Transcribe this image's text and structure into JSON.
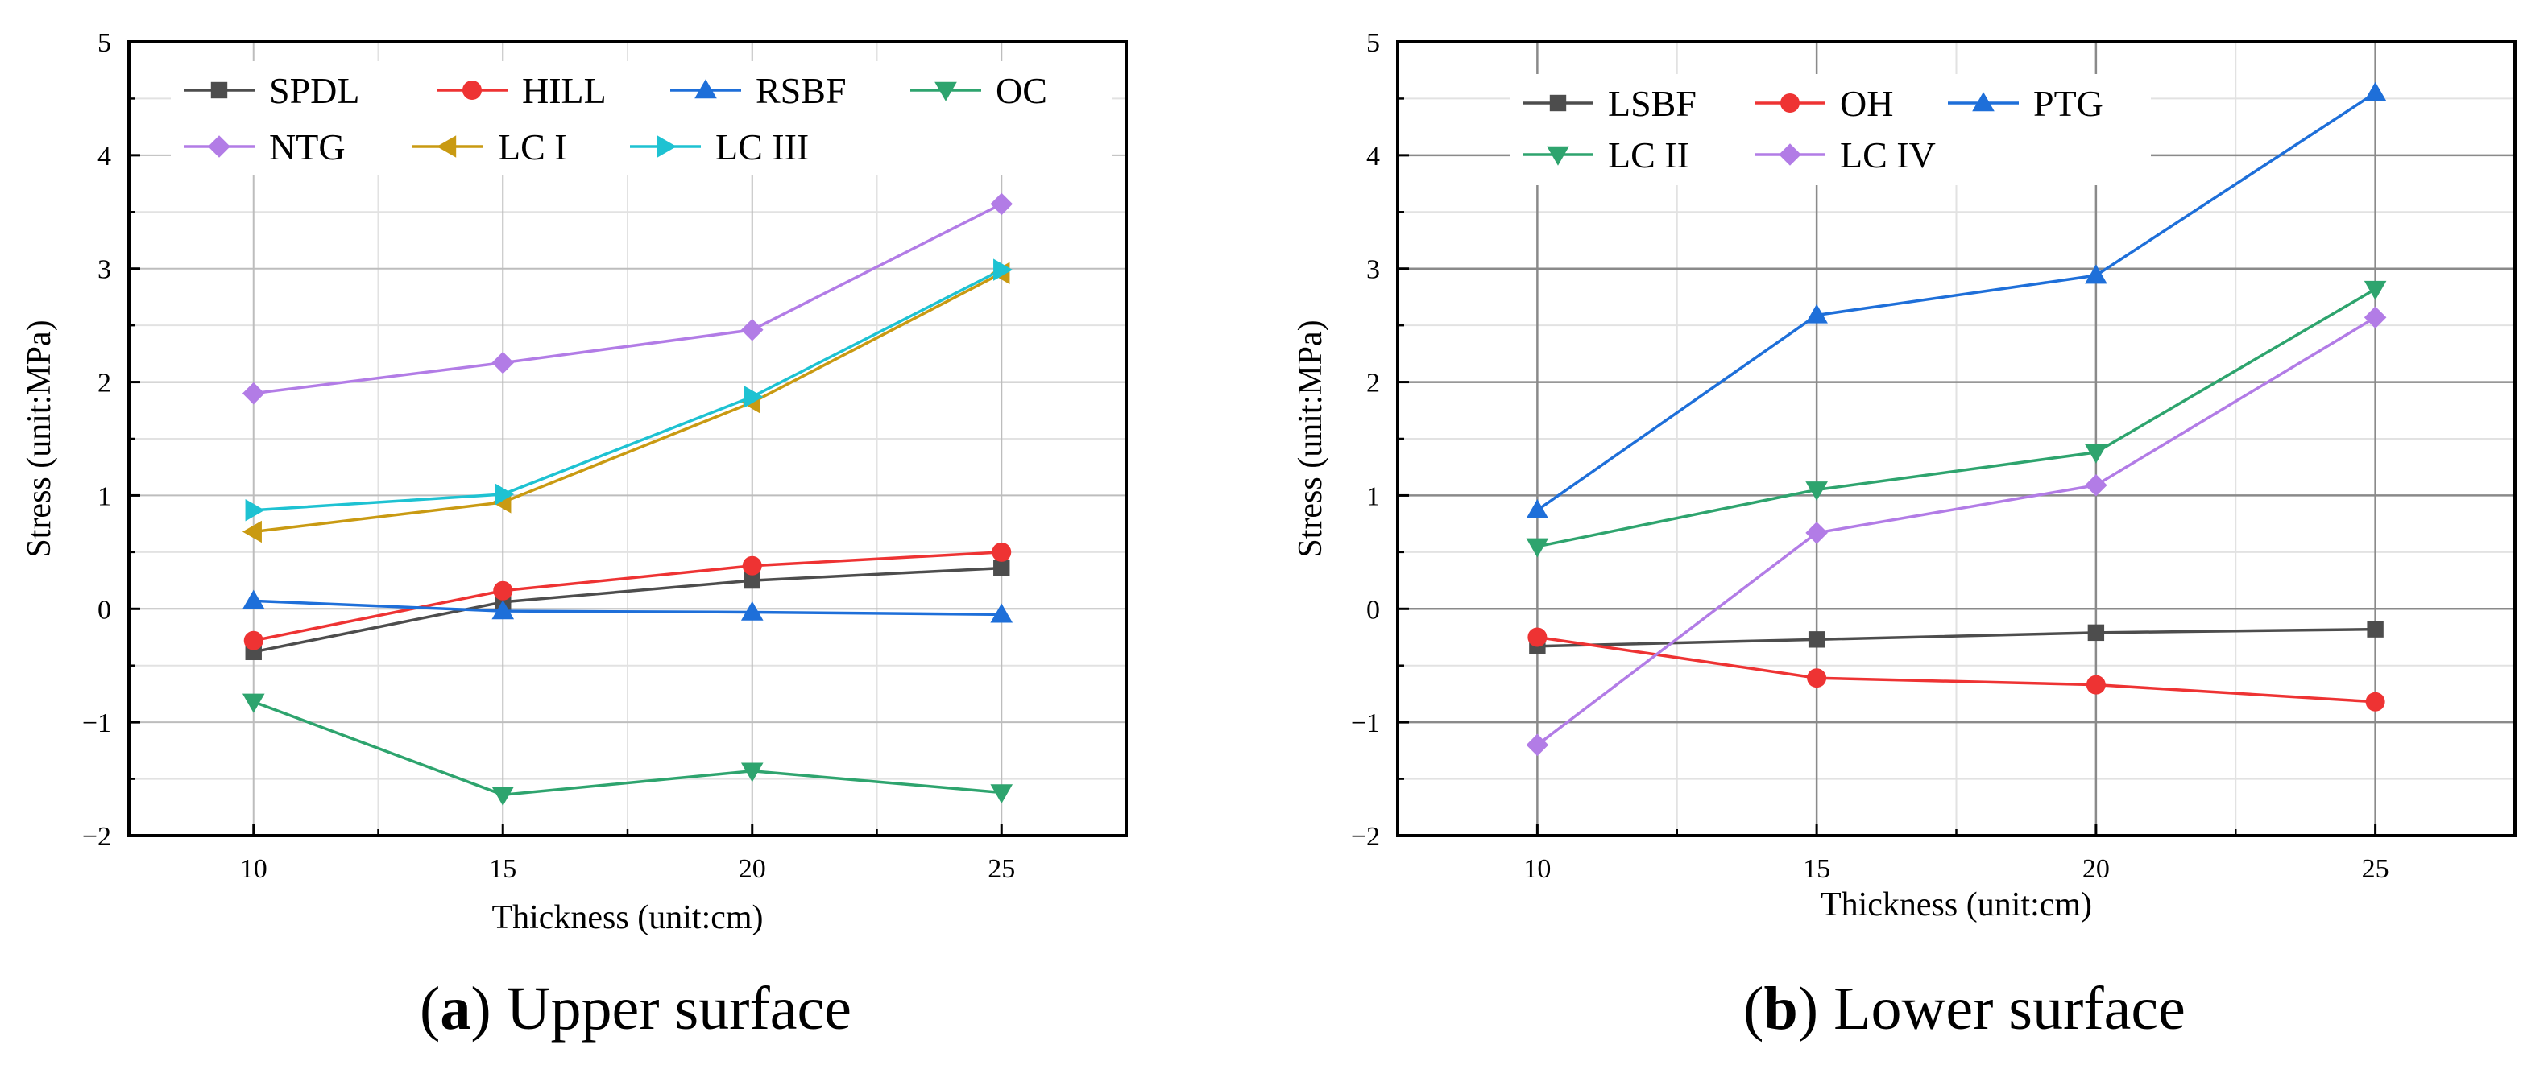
{
  "chart_data": [
    {
      "type": "line",
      "title": "",
      "xlabel": "Thickness (unit:cm)",
      "ylabel": "Stress (unit:MPa)",
      "caption_letter": "a",
      "caption_text": " Upper surface",
      "caption_open": "(",
      "caption_close": ")",
      "x": [
        10,
        15,
        20,
        25
      ],
      "x_ticks": [
        "10",
        "15",
        "20",
        "25"
      ],
      "xlim": [
        7.5,
        27.5
      ],
      "ylim": [
        -2,
        5
      ],
      "y_ticks": [
        "−2",
        "−1",
        "0",
        "1",
        "2",
        "3",
        "4",
        "5"
      ],
      "legend_position": "top",
      "grid": true,
      "series": [
        {
          "name": "SPDL",
          "values": [
            -0.38,
            0.06,
            0.25,
            0.36
          ],
          "color": "#4d4d4d",
          "marker": "square"
        },
        {
          "name": "HILL",
          "values": [
            -0.28,
            0.16,
            0.38,
            0.5
          ],
          "color": "#ee3333",
          "marker": "circle"
        },
        {
          "name": "RSBF",
          "values": [
            0.07,
            -0.02,
            -0.03,
            -0.05
          ],
          "color": "#1e6fd9",
          "marker": "triangle-up"
        },
        {
          "name": "OC",
          "values": [
            -0.82,
            -1.64,
            -1.43,
            -1.62
          ],
          "color": "#2ea46e",
          "marker": "triangle-down"
        },
        {
          "name": "NTG",
          "values": [
            1.9,
            2.17,
            2.46,
            3.57
          ],
          "color": "#b27ce6",
          "marker": "diamond"
        },
        {
          "name": "LC I",
          "values": [
            0.68,
            0.94,
            1.82,
            2.96
          ],
          "color": "#c99a12",
          "marker": "triangle-left"
        },
        {
          "name": "LC III",
          "values": [
            0.87,
            1.01,
            1.87,
            2.99
          ],
          "color": "#1ec2d2",
          "marker": "triangle-right"
        }
      ]
    },
    {
      "type": "line",
      "title": "",
      "xlabel": "Thickness (unit:cm)",
      "ylabel": "Stress (unit:MPa)",
      "caption_letter": "b",
      "caption_text": " Lower surface",
      "caption_open": "(",
      "caption_close": ")",
      "x": [
        10,
        15,
        20,
        25
      ],
      "x_ticks": [
        "10",
        "15",
        "20",
        "25"
      ],
      "xlim": [
        7.5,
        27.5
      ],
      "ylim": [
        -2,
        5
      ],
      "y_ticks": [
        "−2",
        "−1",
        "0",
        "1",
        "2",
        "3",
        "4",
        "5"
      ],
      "legend_position": "top",
      "grid": true,
      "series": [
        {
          "name": "LSBF",
          "values": [
            -0.33,
            -0.27,
            -0.21,
            -0.18
          ],
          "color": "#4d4d4d",
          "marker": "square"
        },
        {
          "name": "OH",
          "values": [
            -0.25,
            -0.61,
            -0.67,
            -0.82
          ],
          "color": "#ee3333",
          "marker": "circle"
        },
        {
          "name": "PTG",
          "values": [
            0.87,
            2.59,
            2.94,
            4.55
          ],
          "color": "#1e6fd9",
          "marker": "triangle-up"
        },
        {
          "name": "LC II",
          "values": [
            0.55,
            1.05,
            1.38,
            2.82
          ],
          "color": "#2ea46e",
          "marker": "triangle-down"
        },
        {
          "name": "LC IV",
          "values": [
            -1.2,
            0.67,
            1.09,
            2.57
          ],
          "color": "#b27ce6",
          "marker": "diamond"
        }
      ]
    }
  ]
}
